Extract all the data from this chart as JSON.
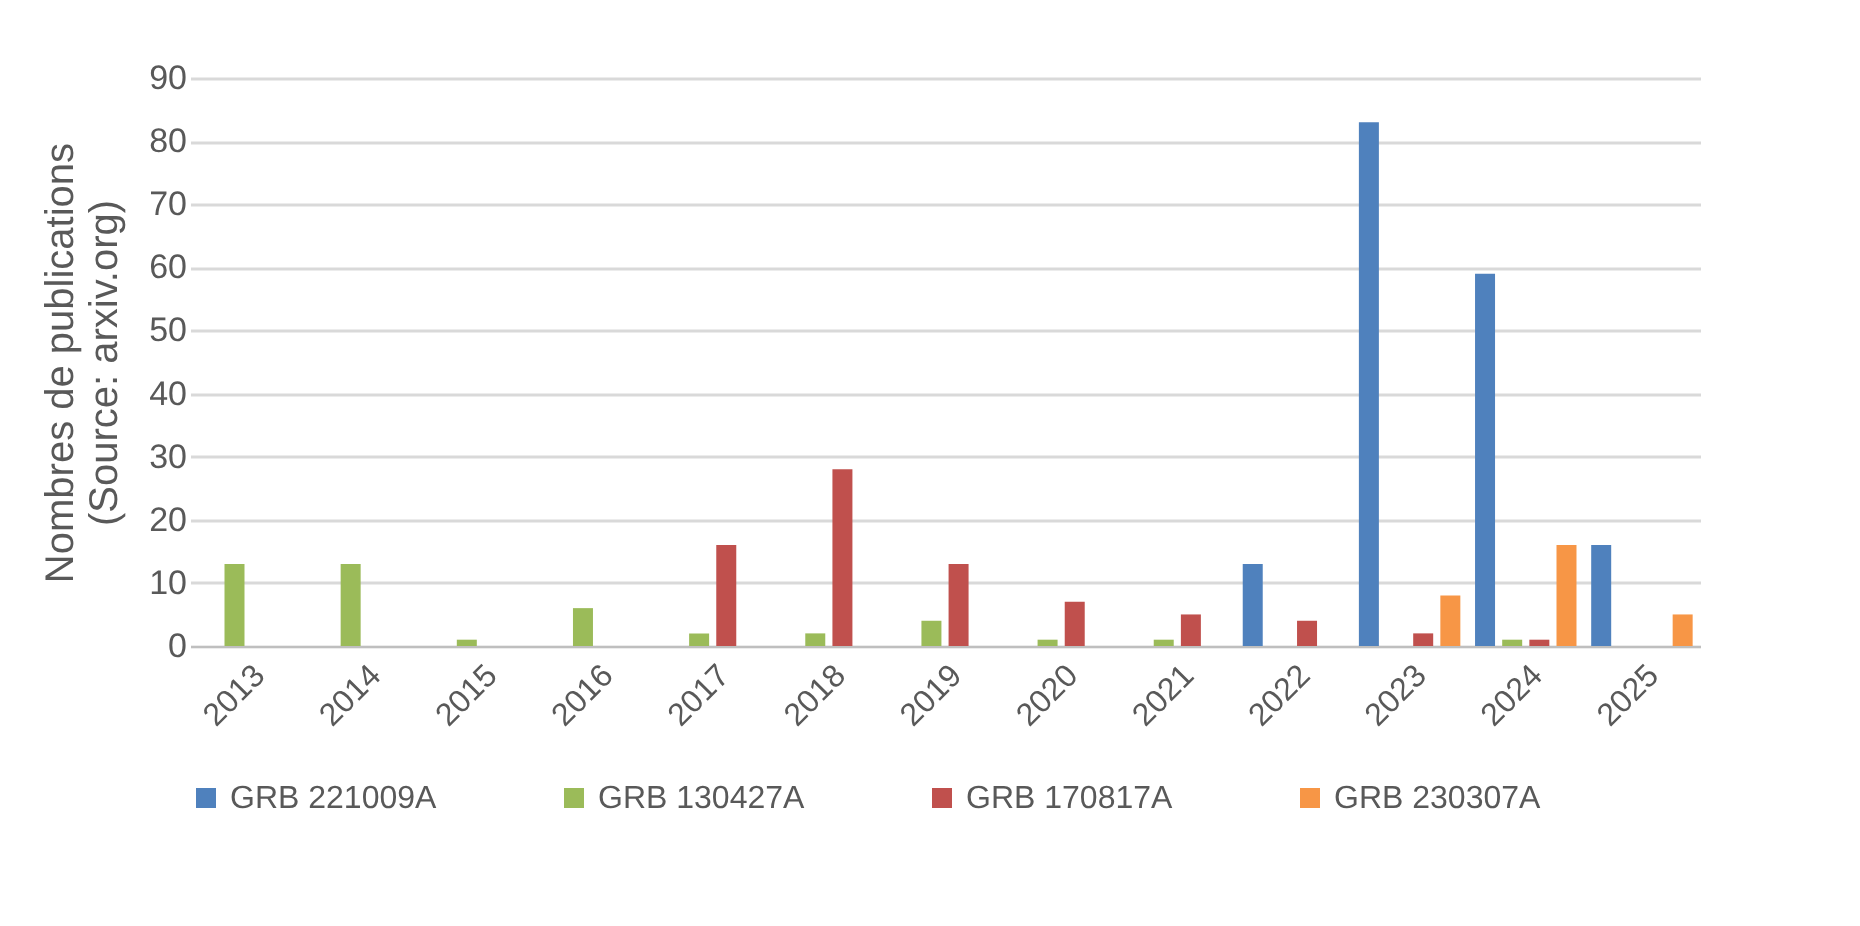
{
  "chart_data": {
    "type": "bar",
    "ylabel": "Nombres de publications\n(Source: arxiv.org)",
    "categories": [
      "2013",
      "2014",
      "2015",
      "2016",
      "2017",
      "2018",
      "2019",
      "2020",
      "2021",
      "2022",
      "2023",
      "2024",
      "2025"
    ],
    "series": [
      {
        "name": "GRB 221009A",
        "color": "#4f81bd",
        "values": [
          null,
          null,
          null,
          null,
          null,
          null,
          null,
          null,
          null,
          13,
          83,
          59,
          16
        ]
      },
      {
        "name": "GRB 130427A",
        "color": "#9bbb59",
        "values": [
          13,
          13,
          1,
          6,
          2,
          2,
          4,
          1,
          1,
          null,
          null,
          1,
          null
        ]
      },
      {
        "name": "GRB 170817A",
        "color": "#c0504d",
        "values": [
          null,
          null,
          null,
          null,
          16,
          28,
          13,
          7,
          5,
          4,
          2,
          1,
          null
        ]
      },
      {
        "name": "GRB 230307A",
        "color": "#f79646",
        "values": [
          null,
          null,
          null,
          null,
          null,
          null,
          null,
          null,
          null,
          null,
          8,
          16,
          5
        ]
      }
    ],
    "ylim": [
      0,
      90
    ],
    "yticks": [
      0,
      10,
      20,
      30,
      40,
      50,
      60,
      70,
      80,
      90
    ],
    "grid": "y",
    "legend": "bottom"
  }
}
